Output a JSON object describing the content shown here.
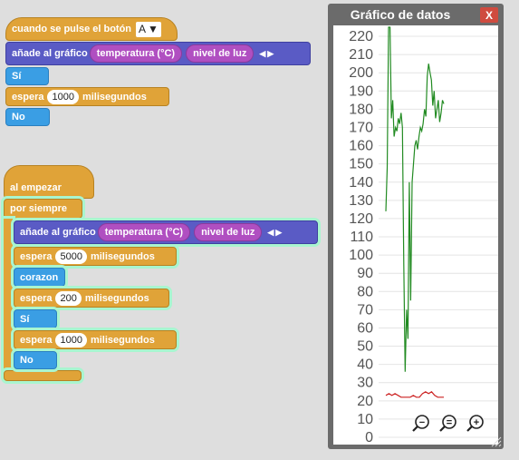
{
  "event_block": {
    "label": "cuando se pulse el botón",
    "button_value": "A",
    "graph_label": "añade al gráfico",
    "sensor_1": "temperatura (°C)",
    "sensor_2": "nivel de luz",
    "yes_label": "Sí",
    "wait_label": "espera",
    "wait_value": "1000",
    "wait_unit": "milisegundos",
    "no_label": "No"
  },
  "start_block": {
    "label": "al empezar",
    "forever_label": "por siempre",
    "graph_label": "añade al gráfico",
    "sensor_1": "temperatura (°C)",
    "sensor_2": "nivel de luz",
    "wait1_label": "espera",
    "wait1_value": "5000",
    "wait1_unit": "milisegundos",
    "heart_label": "corazon",
    "wait2_label": "espera",
    "wait2_value": "200",
    "wait2_unit": "milisegundos",
    "yes_label": "Sí",
    "wait3_label": "espera",
    "wait3_value": "1000",
    "wait3_unit": "milisegundos",
    "no_label": "No"
  },
  "panel": {
    "title": "Gráfico de datos",
    "close_label": "X",
    "icons": [
      "zoom-out-icon",
      "zoom-reset-icon",
      "zoom-in-icon"
    ]
  },
  "chart_data": {
    "type": "line",
    "ylim": [
      0,
      225
    ],
    "yticks": [
      0,
      10,
      20,
      30,
      40,
      50,
      60,
      70,
      80,
      90,
      100,
      110,
      120,
      130,
      140,
      150,
      160,
      170,
      180,
      190,
      200,
      210,
      220
    ],
    "grid": true,
    "series": [
      {
        "color": "#228b22",
        "values": [
          124,
          148,
          225,
          225,
          175,
          185,
          165,
          170,
          168,
          175,
          172,
          178,
          170,
          95,
          36,
          70,
          54,
          140,
          75,
          140,
          150,
          160,
          163,
          158,
          165,
          170,
          168,
          172,
          180,
          176,
          198,
          205,
          200,
          196,
          182,
          190,
          175,
          180,
          185,
          173,
          178,
          185,
          183
        ]
      },
      {
        "color": "#cc2222",
        "values": [
          23,
          24,
          23,
          24,
          23,
          22,
          22,
          22,
          22,
          23,
          22,
          22,
          24,
          25,
          24,
          25,
          23,
          22,
          22,
          22
        ]
      }
    ]
  }
}
